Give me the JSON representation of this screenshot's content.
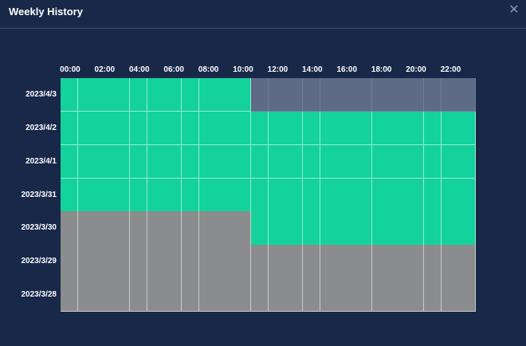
{
  "dialog": {
    "title": "Weekly History",
    "close_icon": "close-icon"
  },
  "hour_labels": [
    "00:00",
    "02:00",
    "04:00",
    "06:00",
    "08:00",
    "10:00",
    "12:00",
    "14:00",
    "16:00",
    "18:00",
    "20:00",
    "22:00"
  ],
  "days": [
    {
      "date": "2023/4/3",
      "online_slots": [
        0,
        22
      ],
      "future_from": 22
    },
    {
      "date": "2023/4/2",
      "online_slots": [
        0,
        48
      ]
    },
    {
      "date": "2023/4/1",
      "online_slots": [
        0,
        48
      ]
    },
    {
      "date": "2023/3/31",
      "online_slots": [
        0,
        48
      ]
    },
    {
      "date": "2023/3/30",
      "online_slots": [
        22,
        48
      ]
    },
    {
      "date": "2023/3/29",
      "online_slots": []
    },
    {
      "date": "2023/3/28",
      "online_slots": []
    }
  ],
  "slots_per_day": 48,
  "colors": {
    "online": "#14d29c",
    "offline": "#8a8c8d",
    "future": "#5d6b87",
    "background": "#182848"
  }
}
